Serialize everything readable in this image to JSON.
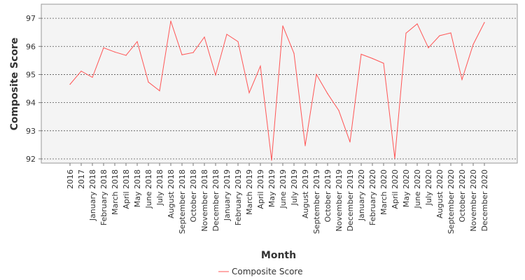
{
  "chart_data": {
    "type": "line",
    "xlabel": "Month",
    "ylabel": "Composite Score",
    "ylim": [
      91.85,
      97.5
    ],
    "yticks": [
      92,
      93,
      94,
      95,
      96,
      97
    ],
    "grid": "horizontal dashed",
    "legend_position": "bottom-center",
    "categories": [
      "2016",
      "2017",
      "January 2018",
      "February 2018",
      "March 2018",
      "April 2018",
      "May 2018",
      "June 2018",
      "July 2018",
      "August 2018",
      "September 2018",
      "October 2018",
      "November 2018",
      "December 2018",
      "January 2019",
      "February 2019",
      "March 2019",
      "April 2019",
      "May 2019",
      "June 2019",
      "July 2019",
      "August 2019",
      "September 2019",
      "October 2019",
      "November 2019",
      "December 2019",
      "January 2020",
      "February 2020",
      "March 2020",
      "April 2020",
      "May 2020",
      "June 2020",
      "July 2020",
      "August 2020",
      "September 2020",
      "October 2020",
      "November 2020",
      "December 2020"
    ],
    "series": [
      {
        "name": "Composite Score",
        "color": "#ff5555",
        "values": [
          94.65,
          95.12,
          94.9,
          95.95,
          95.8,
          95.68,
          96.17,
          94.73,
          94.42,
          96.9,
          95.7,
          95.78,
          96.33,
          94.98,
          96.43,
          96.17,
          94.35,
          95.3,
          91.95,
          96.73,
          95.75,
          92.47,
          95.0,
          94.32,
          93.72,
          92.6,
          95.72,
          95.57,
          95.4,
          92.02,
          96.47,
          96.8,
          95.95,
          96.38,
          96.48,
          94.82,
          96.07,
          96.85
        ]
      }
    ]
  }
}
